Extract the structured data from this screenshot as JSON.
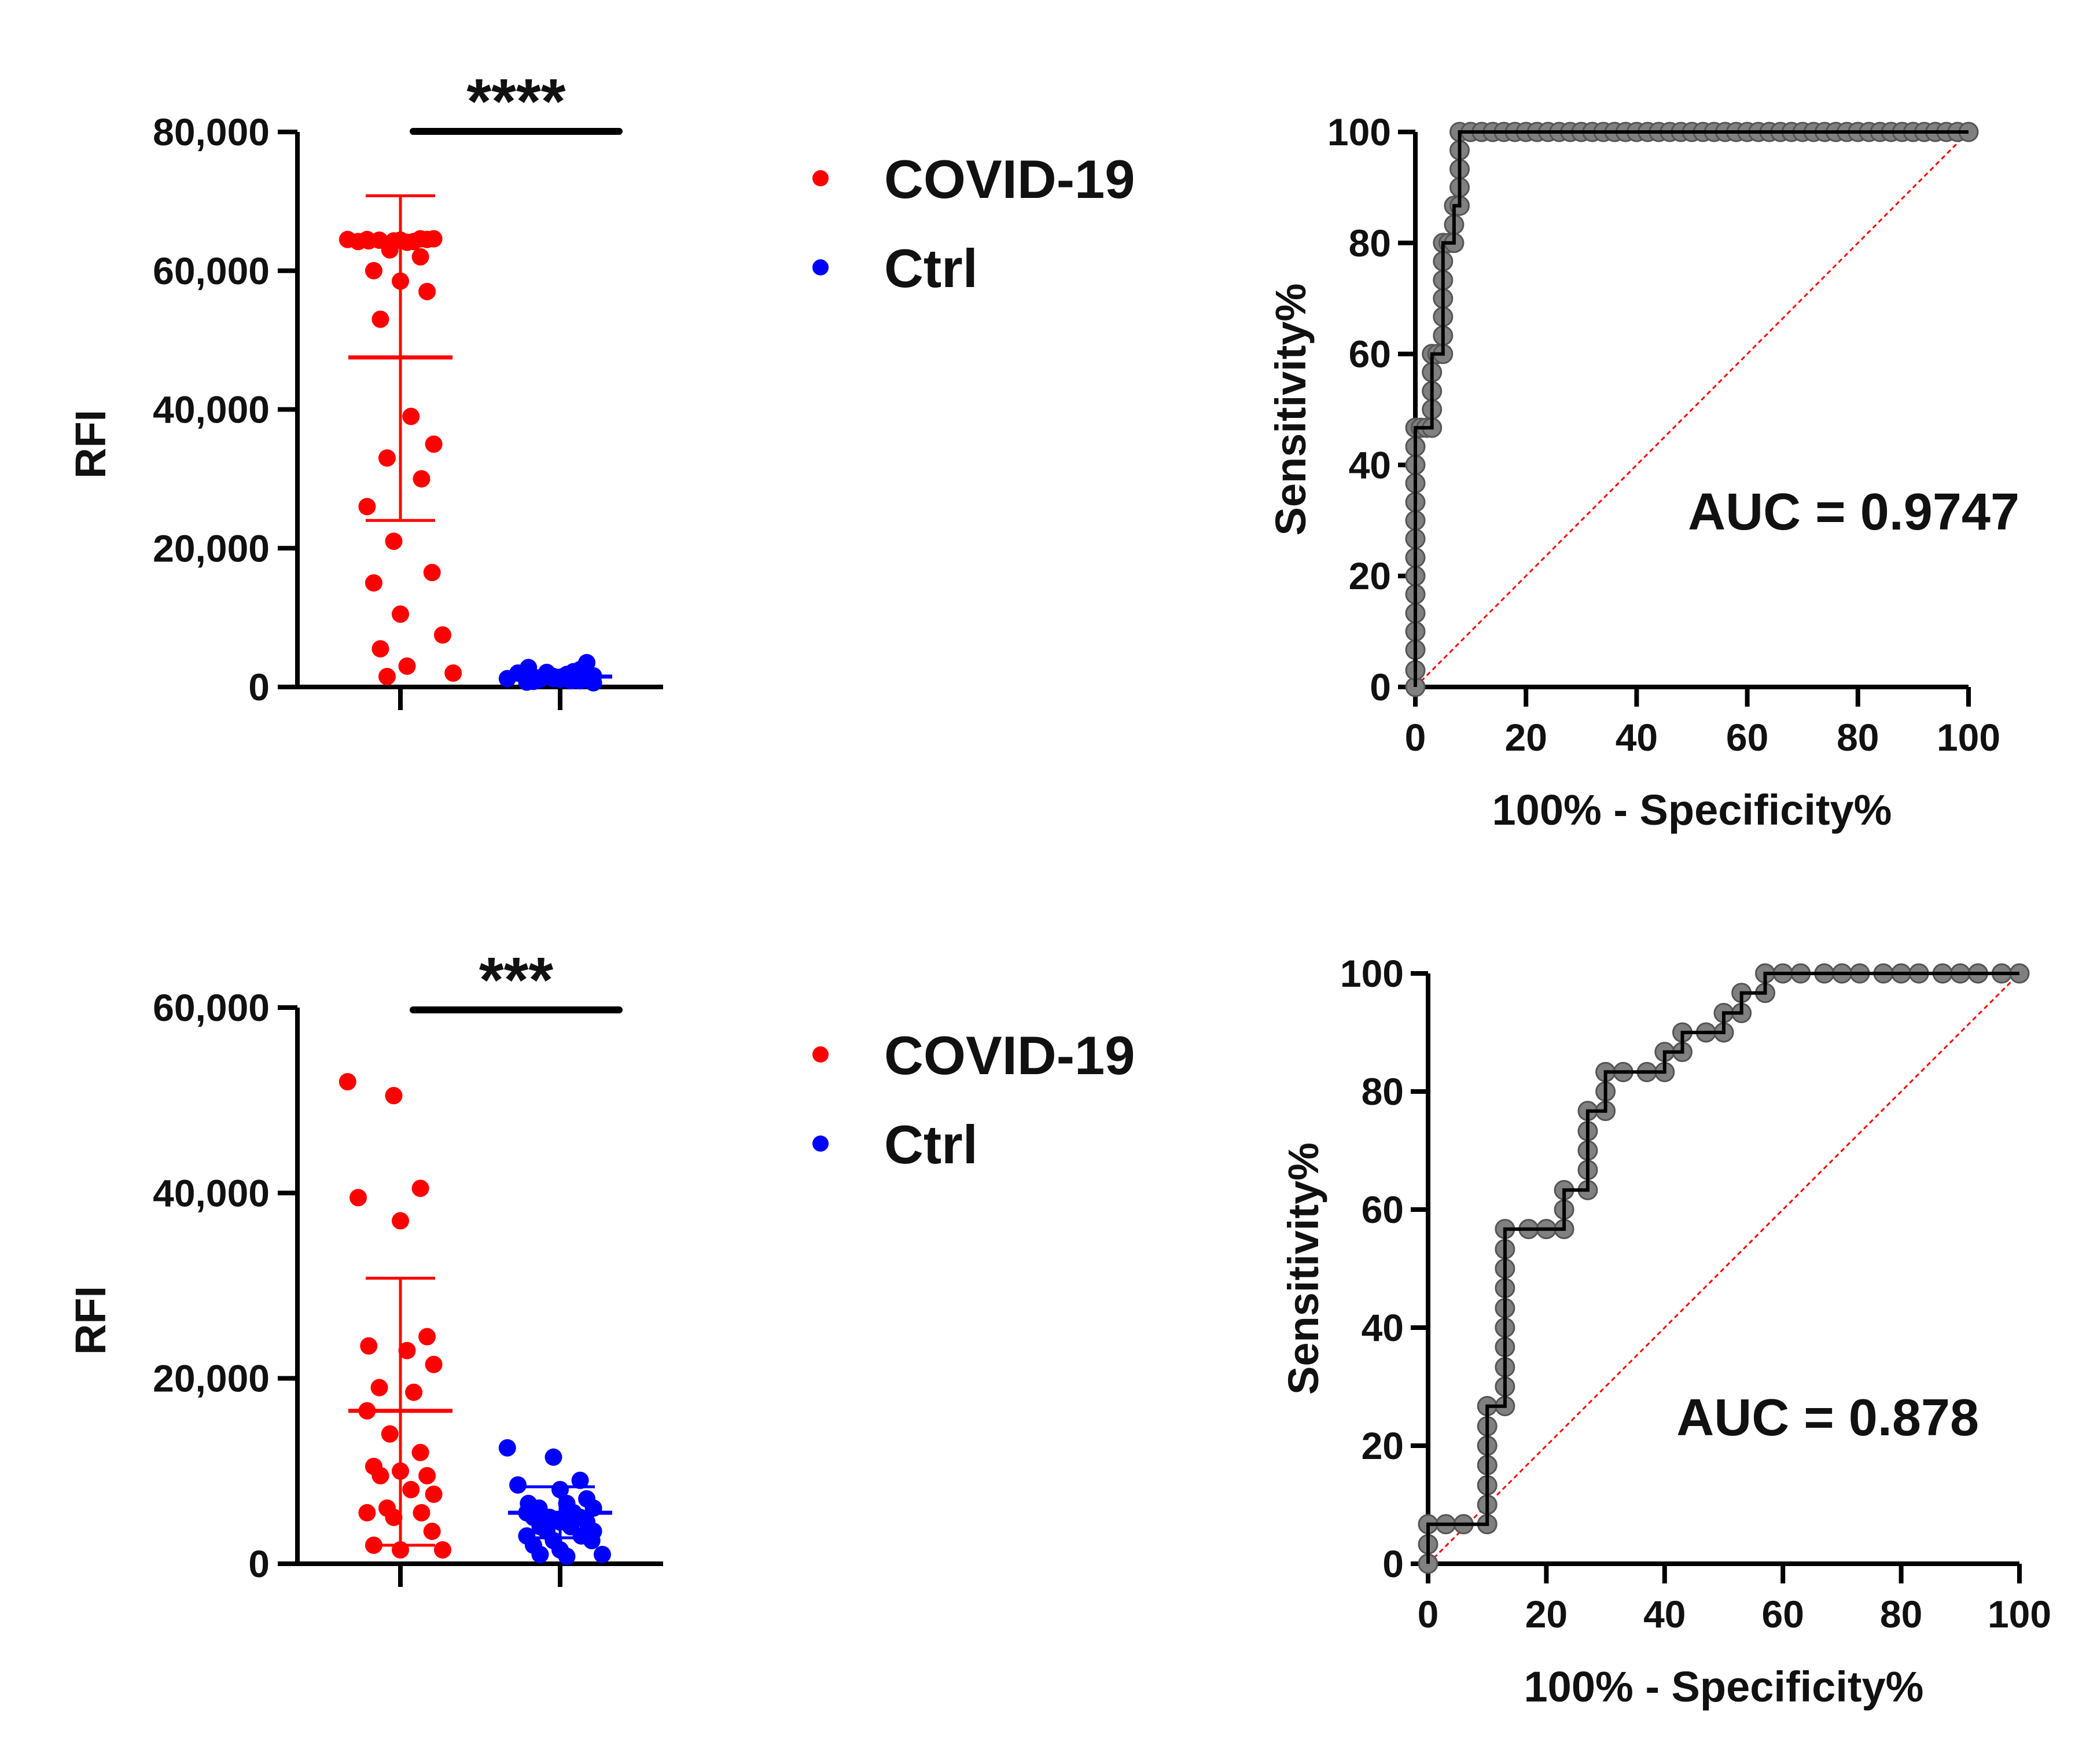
{
  "colors": {
    "covid": "#ff0000",
    "ctrl": "#0000ff",
    "roc_marker": "#808080",
    "roc_marker_edge": "#555555",
    "roc_line": "#000000",
    "diagonal": "#ff0000",
    "axis": "#000000"
  },
  "chart_data": [
    {
      "id": "scatter-top",
      "type": "scatter",
      "ylabel": "RFI",
      "ylim": [
        0,
        80000
      ],
      "yticks": [
        0,
        20000,
        40000,
        60000,
        80000
      ],
      "ytick_labels": [
        "0",
        "20,000",
        "40,000",
        "60,000",
        "80,000"
      ],
      "significance": "****",
      "legend": [
        "COVID-19",
        "Ctrl"
      ],
      "groups": [
        {
          "name": "COVID-19",
          "mean": 47500,
          "sd_low": 24000,
          "sd_high": 70800,
          "points": [
            64500,
            64300,
            64600,
            64200,
            64400,
            64500,
            64300,
            64100,
            64600,
            64400,
            64200,
            64500,
            63000,
            62000,
            60000,
            58500,
            57000,
            53000,
            39000,
            35000,
            33000,
            30000,
            26000,
            21000,
            16500,
            15000,
            10500,
            7500,
            5500,
            3000,
            2000,
            1500
          ]
        },
        {
          "name": "Ctrl",
          "mean": 1500,
          "sd_low": 800,
          "sd_high": 2300,
          "points": [
            1200,
            1500,
            900,
            2000,
            1100,
            3500,
            2800,
            1800,
            600,
            1300,
            2200,
            1000,
            1700,
            2500,
            800,
            1400,
            1900,
            1100,
            900,
            1600,
            2100,
            1300,
            700,
            1200,
            1500
          ]
        }
      ]
    },
    {
      "id": "roc-top",
      "type": "line",
      "xlabel": "100% - Specificity%",
      "ylabel": "Sensitivity%",
      "xlim": [
        0,
        100
      ],
      "ylim": [
        0,
        100
      ],
      "xticks": [
        0,
        20,
        40,
        60,
        80,
        100
      ],
      "yticks": [
        0,
        20,
        40,
        60,
        80,
        100
      ],
      "annotation": "AUC = 0.9747",
      "points": [
        [
          0,
          0
        ],
        [
          0,
          3
        ],
        [
          0,
          6.7
        ],
        [
          0,
          10
        ],
        [
          0,
          13.3
        ],
        [
          0,
          16.7
        ],
        [
          0,
          20
        ],
        [
          0,
          23.3
        ],
        [
          0,
          26.7
        ],
        [
          0,
          30
        ],
        [
          0,
          33.3
        ],
        [
          0,
          36.7
        ],
        [
          0,
          40
        ],
        [
          0,
          43.3
        ],
        [
          0,
          46.7
        ],
        [
          1,
          46.7
        ],
        [
          2,
          46.7
        ],
        [
          3,
          46.7
        ],
        [
          3,
          50
        ],
        [
          3,
          53.3
        ],
        [
          3,
          56.7
        ],
        [
          3,
          60
        ],
        [
          4,
          60
        ],
        [
          5,
          60
        ],
        [
          5,
          63.3
        ],
        [
          5,
          66.7
        ],
        [
          5,
          70
        ],
        [
          5,
          73.3
        ],
        [
          5,
          76.7
        ],
        [
          5,
          80
        ],
        [
          6,
          80
        ],
        [
          7,
          80
        ],
        [
          7,
          83.3
        ],
        [
          7,
          86.7
        ],
        [
          8,
          86.7
        ],
        [
          8,
          90
        ],
        [
          8,
          93.3
        ],
        [
          8,
          96.7
        ],
        [
          8,
          100
        ],
        [
          10,
          100
        ],
        [
          12,
          100
        ],
        [
          14,
          100
        ],
        [
          16,
          100
        ],
        [
          18,
          100
        ],
        [
          20,
          100
        ],
        [
          22,
          100
        ],
        [
          24,
          100
        ],
        [
          26,
          100
        ],
        [
          28,
          100
        ],
        [
          30,
          100
        ],
        [
          32,
          100
        ],
        [
          34,
          100
        ],
        [
          36,
          100
        ],
        [
          38,
          100
        ],
        [
          40,
          100
        ],
        [
          42,
          100
        ],
        [
          44,
          100
        ],
        [
          46,
          100
        ],
        [
          48,
          100
        ],
        [
          50,
          100
        ],
        [
          52,
          100
        ],
        [
          54,
          100
        ],
        [
          56,
          100
        ],
        [
          58,
          100
        ],
        [
          60,
          100
        ],
        [
          62,
          100
        ],
        [
          64,
          100
        ],
        [
          66,
          100
        ],
        [
          68,
          100
        ],
        [
          70,
          100
        ],
        [
          72,
          100
        ],
        [
          74,
          100
        ],
        [
          76,
          100
        ],
        [
          78,
          100
        ],
        [
          80,
          100
        ],
        [
          82,
          100
        ],
        [
          84,
          100
        ],
        [
          86,
          100
        ],
        [
          88,
          100
        ],
        [
          90,
          100
        ],
        [
          92,
          100
        ],
        [
          94,
          100
        ],
        [
          96,
          100
        ],
        [
          98,
          100
        ],
        [
          100,
          100
        ]
      ]
    },
    {
      "id": "scatter-bottom",
      "type": "scatter",
      "ylabel": "RFI",
      "ylim": [
        0,
        60000
      ],
      "yticks": [
        0,
        20000,
        40000,
        60000
      ],
      "ytick_labels": [
        "0",
        "20,000",
        "40,000",
        "60,000"
      ],
      "significance": "***",
      "legend": [
        "COVID-19",
        "Ctrl"
      ],
      "groups": [
        {
          "name": "COVID-19",
          "mean": 16500,
          "sd_low": 2000,
          "sd_high": 30800,
          "points": [
            52000,
            50500,
            40500,
            39500,
            37000,
            24500,
            23500,
            23000,
            21500,
            19000,
            18500,
            16500,
            14000,
            12000,
            10500,
            10000,
            9500,
            9500,
            8000,
            7500,
            6000,
            5500,
            5500,
            5000,
            3500,
            2000,
            1500,
            1500
          ]
        },
        {
          "name": "Ctrl",
          "mean": 5500,
          "sd_low": 2800,
          "sd_high": 8300,
          "points": [
            12500,
            11500,
            9000,
            8500,
            8000,
            7000,
            6500,
            6500,
            6000,
            6000,
            5500,
            5500,
            5000,
            5000,
            5000,
            4500,
            4500,
            4000,
            4000,
            3500,
            3500,
            3000,
            3000,
            2500,
            2500,
            2000,
            1500,
            1000,
            1000,
            800
          ]
        }
      ]
    },
    {
      "id": "roc-bottom",
      "type": "line",
      "xlabel": "100% - Specificity%",
      "ylabel": "Sensitivity%",
      "xlim": [
        0,
        100
      ],
      "ylim": [
        0,
        100
      ],
      "xticks": [
        0,
        20,
        40,
        60,
        80,
        100
      ],
      "yticks": [
        0,
        20,
        40,
        60,
        80,
        100
      ],
      "annotation": "AUC = 0.878",
      "points": [
        [
          0,
          0
        ],
        [
          0,
          3.3
        ],
        [
          0,
          6.7
        ],
        [
          3,
          6.7
        ],
        [
          6,
          6.7
        ],
        [
          10,
          6.7
        ],
        [
          10,
          10
        ],
        [
          10,
          13.3
        ],
        [
          10,
          16.7
        ],
        [
          10,
          20
        ],
        [
          10,
          23.3
        ],
        [
          10,
          26.7
        ],
        [
          13,
          26.7
        ],
        [
          13,
          30
        ],
        [
          13,
          33.3
        ],
        [
          13,
          36.7
        ],
        [
          13,
          40
        ],
        [
          13,
          43.3
        ],
        [
          13,
          46.7
        ],
        [
          13,
          50
        ],
        [
          13,
          53.3
        ],
        [
          13,
          56.7
        ],
        [
          17,
          56.7
        ],
        [
          20,
          56.7
        ],
        [
          23,
          56.7
        ],
        [
          23,
          60
        ],
        [
          23,
          63.3
        ],
        [
          27,
          63.3
        ],
        [
          27,
          66.7
        ],
        [
          27,
          70
        ],
        [
          27,
          73.3
        ],
        [
          27,
          76.7
        ],
        [
          30,
          76.7
        ],
        [
          30,
          80
        ],
        [
          30,
          83.3
        ],
        [
          33,
          83.3
        ],
        [
          37,
          83.3
        ],
        [
          40,
          83.3
        ],
        [
          40,
          86.7
        ],
        [
          43,
          86.7
        ],
        [
          43,
          90
        ],
        [
          47,
          90
        ],
        [
          50,
          90
        ],
        [
          50,
          93.3
        ],
        [
          53,
          93.3
        ],
        [
          53,
          96.7
        ],
        [
          57,
          96.7
        ],
        [
          57,
          100
        ],
        [
          60,
          100
        ],
        [
          63,
          100
        ],
        [
          67,
          100
        ],
        [
          70,
          100
        ],
        [
          73,
          100
        ],
        [
          77,
          100
        ],
        [
          80,
          100
        ],
        [
          83,
          100
        ],
        [
          87,
          100
        ],
        [
          90,
          100
        ],
        [
          93,
          100
        ],
        [
          97,
          100
        ],
        [
          100,
          100
        ]
      ]
    }
  ]
}
